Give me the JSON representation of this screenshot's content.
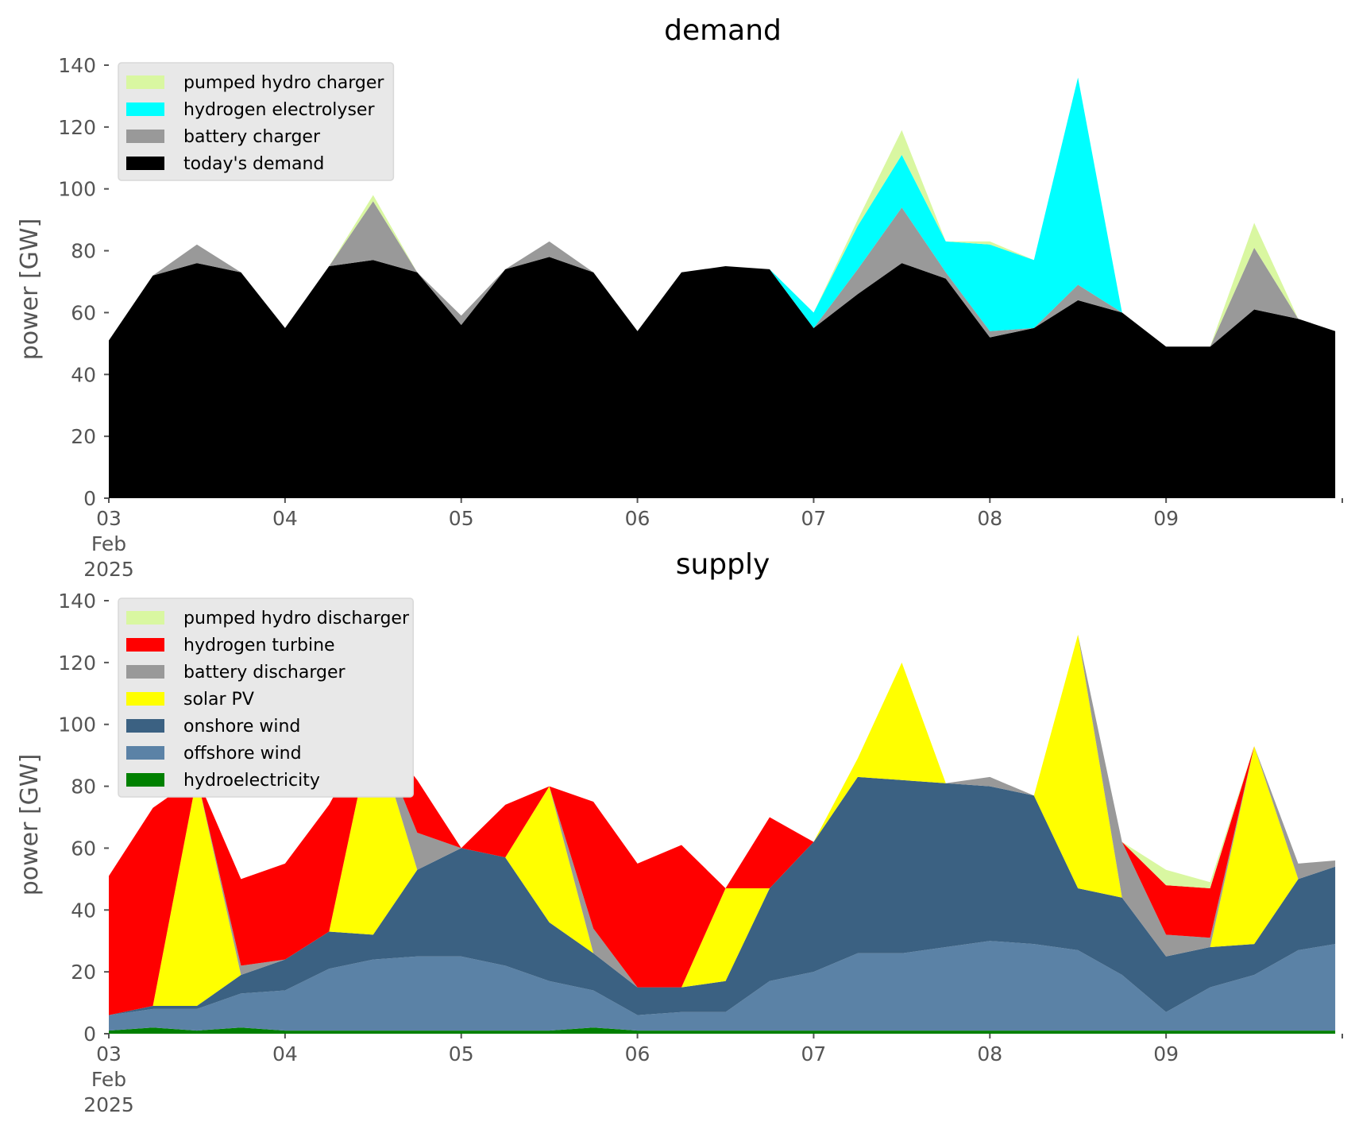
{
  "chart_data": [
    {
      "type": "area",
      "stacked": true,
      "title": "demand",
      "ylabel": "power [GW]",
      "xlabel": "",
      "ylim": [
        0,
        140
      ],
      "yticks": [
        0,
        20,
        40,
        60,
        80,
        100,
        120,
        140
      ],
      "xlim_days": [
        0,
        7
      ],
      "xticks": [
        {
          "day": 0,
          "label": "03",
          "sub": [
            "Feb",
            "2025"
          ]
        },
        {
          "day": 1,
          "label": "04"
        },
        {
          "day": 2,
          "label": "05"
        },
        {
          "day": 3,
          "label": "06"
        },
        {
          "day": 4,
          "label": "07"
        },
        {
          "day": 5,
          "label": "08"
        },
        {
          "day": 6,
          "label": "09"
        }
      ],
      "grid": false,
      "legend": "upper-left",
      "legend_entries": [
        "pumped hydro charger",
        "hydrogen electrolyser",
        "battery charger",
        "today's demand"
      ],
      "x_days": [
        0.0,
        0.25,
        0.5,
        0.75,
        1.0,
        1.25,
        1.5,
        1.75,
        2.0,
        2.25,
        2.5,
        2.75,
        3.0,
        3.25,
        3.5,
        3.75,
        4.0,
        4.25,
        4.5,
        4.75,
        5.0,
        5.25,
        5.5,
        5.75,
        6.0,
        6.25,
        6.5,
        6.75,
        6.96
      ],
      "series": [
        {
          "name": "today's demand",
          "color": "#000000",
          "values": [
            51,
            72,
            76,
            73,
            55,
            75,
            77,
            73,
            56,
            74,
            78,
            73,
            54,
            73,
            75,
            74,
            55,
            66,
            76,
            71,
            52,
            55,
            64,
            60,
            49,
            49,
            61,
            58,
            54
          ]
        },
        {
          "name": "battery charger",
          "color": "#999999",
          "values": [
            0,
            0,
            6,
            0,
            0,
            0,
            19,
            0,
            3,
            0,
            5,
            0,
            0,
            0,
            0,
            0,
            0,
            8,
            18,
            2,
            2,
            0,
            5,
            0,
            0,
            0,
            20,
            0,
            0
          ]
        },
        {
          "name": "hydrogen electrolyser",
          "color": "#00ffff",
          "values": [
            0,
            0,
            0,
            0,
            0,
            0,
            0,
            0,
            0,
            0,
            0,
            0,
            0,
            0,
            0,
            0,
            5,
            14,
            17,
            10,
            28,
            22,
            67,
            0,
            0,
            0,
            0,
            0,
            0
          ]
        },
        {
          "name": "pumped hydro charger",
          "color": "#d9f7a1",
          "values": [
            0,
            0,
            0,
            0,
            0,
            0,
            2,
            0,
            0,
            0,
            0,
            0,
            0,
            0,
            0,
            0,
            0,
            2,
            8,
            0,
            1,
            0,
            0,
            0,
            0,
            0,
            8,
            0,
            0
          ]
        }
      ]
    },
    {
      "type": "area",
      "stacked": true,
      "title": "supply",
      "ylabel": "power [GW]",
      "xlabel": "",
      "ylim": [
        0,
        140
      ],
      "yticks": [
        0,
        20,
        40,
        60,
        80,
        100,
        120,
        140
      ],
      "xlim_days": [
        0,
        7
      ],
      "xticks": [
        {
          "day": 0,
          "label": "03",
          "sub": [
            "Feb",
            "2025"
          ]
        },
        {
          "day": 1,
          "label": "04"
        },
        {
          "day": 2,
          "label": "05"
        },
        {
          "day": 3,
          "label": "06"
        },
        {
          "day": 4,
          "label": "07"
        },
        {
          "day": 5,
          "label": "08"
        },
        {
          "day": 6,
          "label": "09"
        }
      ],
      "grid": false,
      "legend": "upper-left",
      "legend_entries": [
        "pumped hydro discharger",
        "hydrogen turbine",
        "battery discharger",
        "solar PV",
        "onshore wind",
        "offshore wind",
        "hydroelectricity"
      ],
      "x_days": [
        0.0,
        0.25,
        0.5,
        0.75,
        1.0,
        1.25,
        1.5,
        1.75,
        2.0,
        2.25,
        2.5,
        2.75,
        3.0,
        3.25,
        3.5,
        3.75,
        4.0,
        4.25,
        4.5,
        4.75,
        5.0,
        5.25,
        5.5,
        5.75,
        6.0,
        6.25,
        6.5,
        6.75,
        6.96
      ],
      "series": [
        {
          "name": "hydroelectricity",
          "color": "#008000",
          "values": [
            1,
            2,
            1,
            2,
            1,
            1,
            1,
            1,
            1,
            1,
            1,
            2,
            1,
            1,
            1,
            1,
            1,
            1,
            1,
            1,
            1,
            1,
            1,
            1,
            1,
            1,
            1,
            1,
            1
          ]
        },
        {
          "name": "offshore wind",
          "color": "#5b82a6",
          "values": [
            5,
            6,
            7,
            11,
            13,
            20,
            23,
            24,
            24,
            21,
            16,
            12,
            5,
            6,
            6,
            16,
            19,
            25,
            25,
            27,
            29,
            28,
            26,
            18,
            6,
            14,
            18,
            26,
            28
          ]
        },
        {
          "name": "onshore wind",
          "color": "#3b6182",
          "values": [
            0,
            1,
            1,
            6,
            10,
            12,
            8,
            28,
            35,
            35,
            19,
            12,
            9,
            8,
            10,
            30,
            42,
            57,
            56,
            53,
            50,
            48,
            20,
            25,
            18,
            13,
            10,
            23,
            25
          ]
        },
        {
          "name": "solar PV",
          "color": "#ffff00",
          "values": [
            0,
            0,
            74,
            0,
            0,
            0,
            68,
            0,
            0,
            0,
            44,
            0,
            0,
            0,
            30,
            0,
            0,
            6,
            38,
            0,
            0,
            0,
            82,
            0,
            0,
            0,
            64,
            0,
            0
          ]
        },
        {
          "name": "battery discharger",
          "color": "#999999",
          "values": [
            0,
            0,
            0,
            3,
            0,
            0,
            0,
            12,
            0,
            0,
            0,
            8,
            0,
            0,
            0,
            0,
            0,
            0,
            0,
            0,
            3,
            0,
            0,
            18,
            7,
            3,
            0,
            5,
            2
          ]
        },
        {
          "name": "hydrogen turbine",
          "color": "#ff0000",
          "values": [
            45,
            64,
            0,
            28,
            31,
            41,
            0,
            17,
            0,
            17,
            0,
            41,
            40,
            46,
            0,
            23,
            0,
            0,
            0,
            0,
            0,
            0,
            0,
            0,
            16,
            16,
            0,
            0,
            0
          ]
        },
        {
          "name": "pumped hydro discharger",
          "color": "#d9f7a1",
          "values": [
            0,
            0,
            0,
            0,
            0,
            0,
            0,
            0,
            0,
            0,
            0,
            0,
            0,
            0,
            0,
            0,
            0,
            0,
            0,
            0,
            0,
            0,
            0,
            0,
            5,
            2,
            0,
            0,
            0
          ]
        }
      ]
    }
  ]
}
